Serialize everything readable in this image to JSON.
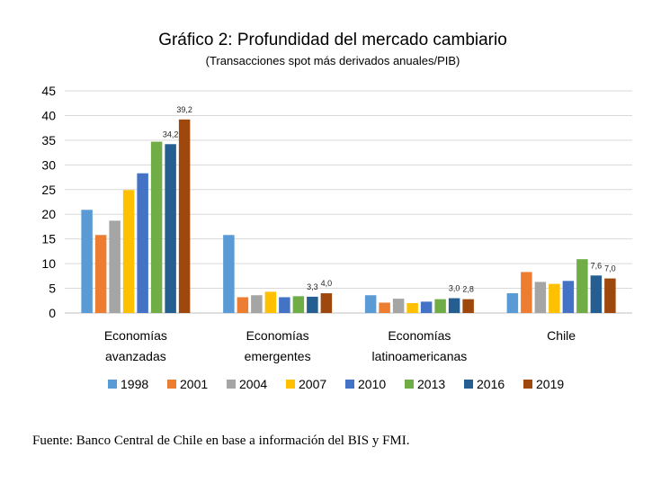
{
  "chart_data": {
    "type": "bar",
    "title": "Gráfico 2: Profundidad del mercado cambiario",
    "subtitle": "(Transacciones spot más derivados anuales/PIB)",
    "categories": [
      [
        "Economías",
        "avanzadas"
      ],
      [
        "Economías",
        "emergentes"
      ],
      [
        "Economías",
        "latinoamericanas"
      ],
      [
        "Chile"
      ]
    ],
    "ylim": [
      0,
      45
    ],
    "yticks": [
      0,
      5,
      10,
      15,
      20,
      25,
      30,
      35,
      40,
      45
    ],
    "grid": true,
    "legend_position": "bottom",
    "series": [
      {
        "name": "1998",
        "color": "#5B9BD5",
        "values": [
          20.9,
          15.8,
          3.6,
          4.0
        ],
        "labels": [
          null,
          null,
          null,
          null
        ]
      },
      {
        "name": "2001",
        "color": "#ED7D31",
        "values": [
          15.8,
          3.2,
          2.1,
          8.3
        ],
        "labels": [
          null,
          null,
          null,
          null
        ]
      },
      {
        "name": "2004",
        "color": "#A5A5A5",
        "values": [
          18.7,
          3.6,
          2.9,
          6.3
        ],
        "labels": [
          null,
          null,
          null,
          null
        ]
      },
      {
        "name": "2007",
        "color": "#FFC000",
        "values": [
          24.9,
          4.3,
          2.0,
          5.9
        ],
        "labels": [
          null,
          null,
          null,
          null
        ]
      },
      {
        "name": "2010",
        "color": "#4472C4",
        "values": [
          28.3,
          3.2,
          2.3,
          6.5
        ],
        "labels": [
          null,
          null,
          null,
          null
        ]
      },
      {
        "name": "2013",
        "color": "#70AD47",
        "values": [
          34.7,
          3.4,
          2.8,
          10.9
        ],
        "labels": [
          null,
          null,
          null,
          null
        ]
      },
      {
        "name": "2016",
        "color": "#255E91",
        "values": [
          34.2,
          3.3,
          3.0,
          7.6
        ],
        "labels": [
          "34,2",
          "3,3",
          "3,0",
          "7,6"
        ]
      },
      {
        "name": "2019",
        "color": "#9E480E",
        "values": [
          39.2,
          4.0,
          2.8,
          7.0
        ],
        "labels": [
          "39,2",
          "4,0",
          "2,8",
          "7,0"
        ]
      }
    ],
    "source": "Fuente: Banco Central de Chile en base a información del BIS y FMI."
  }
}
